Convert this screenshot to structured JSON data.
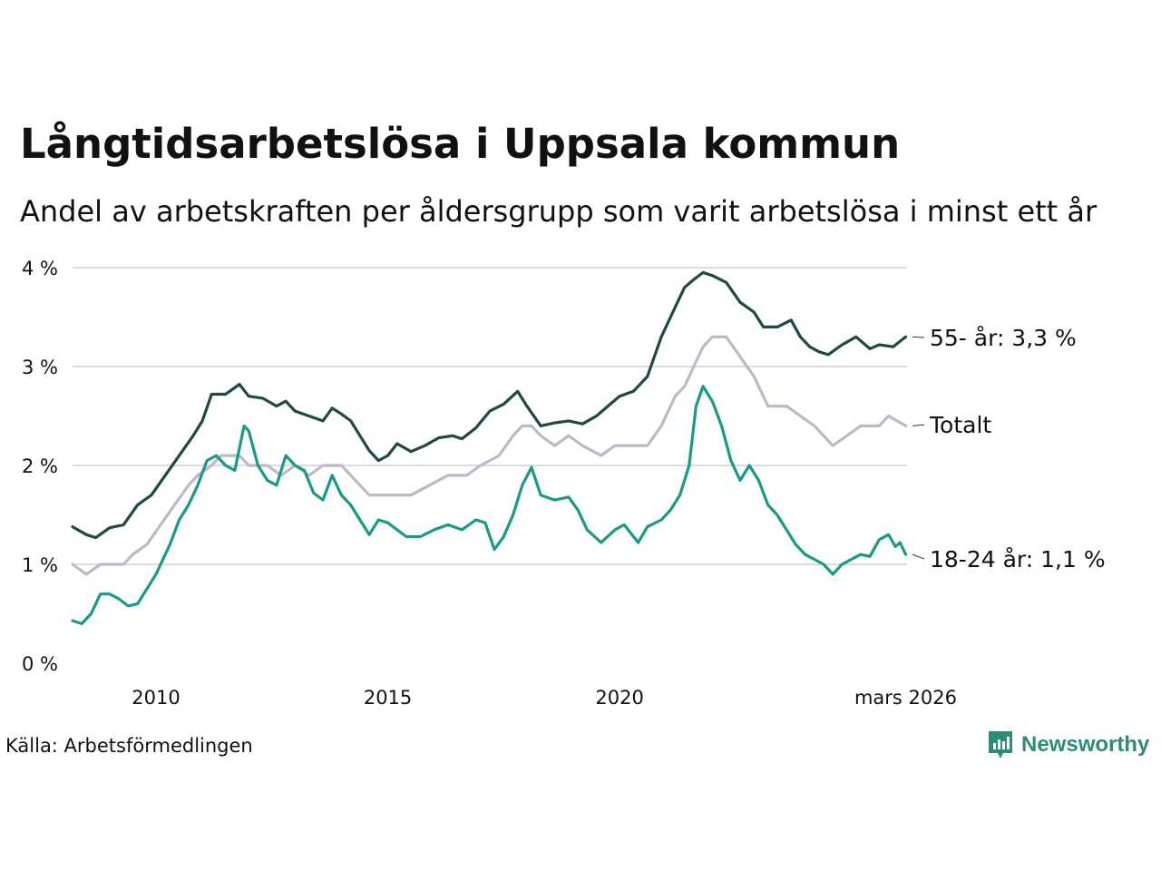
{
  "title": "Långtidsarbetslösa i Uppsala kommun",
  "subtitle": "Andel av arbetskraften per åldersgrupp som varit arbetslösa i minst ett år",
  "source": "Källa: Arbetsförmedlingen",
  "brand": "Newsworthy",
  "colors": {
    "older": "#1f4a44",
    "total": "#bdb9c8",
    "young": "#1a9a86",
    "grid": "#dcdcdc",
    "brand": "#2e8b77"
  },
  "chart_data": {
    "type": "line",
    "title": "Långtidsarbetslösa i Uppsala kommun",
    "xlabel": "",
    "ylabel": "",
    "x_range": [
      2008.2,
      2026.2
    ],
    "ylim": [
      0,
      4
    ],
    "y_ticks": [
      0,
      1,
      2,
      3,
      4
    ],
    "y_tick_labels": [
      "0 %",
      "1 %",
      "2 %",
      "3 %",
      "4 %"
    ],
    "x_ticks": [
      2010,
      2015,
      2020,
      2026.17
    ],
    "x_tick_labels": [
      "2010",
      "2015",
      "2020",
      "mars 2026"
    ],
    "series": [
      {
        "name": "55- år",
        "label": "55- år: 3,3 %",
        "color_key": "older",
        "points": [
          [
            2008.2,
            1.38
          ],
          [
            2008.5,
            1.3
          ],
          [
            2008.7,
            1.27
          ],
          [
            2009.0,
            1.37
          ],
          [
            2009.3,
            1.4
          ],
          [
            2009.6,
            1.6
          ],
          [
            2009.9,
            1.7
          ],
          [
            2010.2,
            1.9
          ],
          [
            2010.5,
            2.1
          ],
          [
            2010.8,
            2.3
          ],
          [
            2011.0,
            2.45
          ],
          [
            2011.2,
            2.72
          ],
          [
            2011.5,
            2.72
          ],
          [
            2011.8,
            2.82
          ],
          [
            2012.0,
            2.7
          ],
          [
            2012.3,
            2.68
          ],
          [
            2012.6,
            2.6
          ],
          [
            2012.8,
            2.65
          ],
          [
            2013.0,
            2.55
          ],
          [
            2013.3,
            2.5
          ],
          [
            2013.6,
            2.45
          ],
          [
            2013.8,
            2.58
          ],
          [
            2014.0,
            2.52
          ],
          [
            2014.2,
            2.45
          ],
          [
            2014.4,
            2.3
          ],
          [
            2014.6,
            2.15
          ],
          [
            2014.8,
            2.05
          ],
          [
            2015.0,
            2.1
          ],
          [
            2015.2,
            2.22
          ],
          [
            2015.5,
            2.14
          ],
          [
            2015.8,
            2.2
          ],
          [
            2016.1,
            2.28
          ],
          [
            2016.4,
            2.3
          ],
          [
            2016.6,
            2.27
          ],
          [
            2016.9,
            2.38
          ],
          [
            2017.2,
            2.55
          ],
          [
            2017.5,
            2.62
          ],
          [
            2017.8,
            2.75
          ],
          [
            2018.0,
            2.6
          ],
          [
            2018.3,
            2.4
          ],
          [
            2018.6,
            2.43
          ],
          [
            2018.9,
            2.45
          ],
          [
            2019.2,
            2.42
          ],
          [
            2019.5,
            2.5
          ],
          [
            2019.8,
            2.62
          ],
          [
            2020.0,
            2.7
          ],
          [
            2020.3,
            2.75
          ],
          [
            2020.6,
            2.9
          ],
          [
            2020.9,
            3.3
          ],
          [
            2021.2,
            3.6
          ],
          [
            2021.4,
            3.8
          ],
          [
            2021.6,
            3.88
          ],
          [
            2021.8,
            3.95
          ],
          [
            2022.0,
            3.92
          ],
          [
            2022.3,
            3.85
          ],
          [
            2022.6,
            3.65
          ],
          [
            2022.9,
            3.55
          ],
          [
            2023.1,
            3.4
          ],
          [
            2023.4,
            3.4
          ],
          [
            2023.7,
            3.47
          ],
          [
            2023.9,
            3.3
          ],
          [
            2024.1,
            3.2
          ],
          [
            2024.3,
            3.15
          ],
          [
            2024.5,
            3.12
          ],
          [
            2024.8,
            3.22
          ],
          [
            2025.1,
            3.3
          ],
          [
            2025.4,
            3.18
          ],
          [
            2025.6,
            3.22
          ],
          [
            2025.9,
            3.2
          ],
          [
            2026.17,
            3.3
          ]
        ]
      },
      {
        "name": "Totalt",
        "label": "Totalt",
        "color_key": "total",
        "points": [
          [
            2008.2,
            1.0
          ],
          [
            2008.5,
            0.9
          ],
          [
            2008.8,
            1.0
          ],
          [
            2009.3,
            1.0
          ],
          [
            2009.5,
            1.1
          ],
          [
            2009.8,
            1.2
          ],
          [
            2010.1,
            1.4
          ],
          [
            2010.4,
            1.6
          ],
          [
            2010.7,
            1.8
          ],
          [
            2010.9,
            1.9
          ],
          [
            2011.2,
            2.0
          ],
          [
            2011.4,
            2.1
          ],
          [
            2011.8,
            2.1
          ],
          [
            2012.0,
            2.0
          ],
          [
            2012.4,
            2.0
          ],
          [
            2012.7,
            1.9
          ],
          [
            2013.0,
            2.0
          ],
          [
            2013.3,
            1.9
          ],
          [
            2013.6,
            2.0
          ],
          [
            2014.0,
            2.0
          ],
          [
            2014.2,
            1.9
          ],
          [
            2014.4,
            1.8
          ],
          [
            2014.6,
            1.7
          ],
          [
            2015.0,
            1.7
          ],
          [
            2015.5,
            1.7
          ],
          [
            2015.9,
            1.8
          ],
          [
            2016.3,
            1.9
          ],
          [
            2016.7,
            1.9
          ],
          [
            2017.0,
            2.0
          ],
          [
            2017.4,
            2.1
          ],
          [
            2017.7,
            2.3
          ],
          [
            2017.9,
            2.4
          ],
          [
            2018.1,
            2.4
          ],
          [
            2018.3,
            2.3
          ],
          [
            2018.6,
            2.2
          ],
          [
            2018.9,
            2.3
          ],
          [
            2019.2,
            2.2
          ],
          [
            2019.6,
            2.1
          ],
          [
            2019.9,
            2.2
          ],
          [
            2020.3,
            2.2
          ],
          [
            2020.6,
            2.2
          ],
          [
            2020.9,
            2.4
          ],
          [
            2021.2,
            2.7
          ],
          [
            2021.4,
            2.8
          ],
          [
            2021.6,
            3.0
          ],
          [
            2021.8,
            3.2
          ],
          [
            2022.0,
            3.3
          ],
          [
            2022.3,
            3.3
          ],
          [
            2022.6,
            3.1
          ],
          [
            2022.9,
            2.9
          ],
          [
            2023.2,
            2.6
          ],
          [
            2023.6,
            2.6
          ],
          [
            2023.9,
            2.5
          ],
          [
            2024.2,
            2.4
          ],
          [
            2024.6,
            2.2
          ],
          [
            2024.9,
            2.3
          ],
          [
            2025.2,
            2.4
          ],
          [
            2025.6,
            2.4
          ],
          [
            2025.8,
            2.5
          ],
          [
            2026.17,
            2.4
          ]
        ]
      },
      {
        "name": "18-24 år",
        "label": "18-24 år: 1,1 %",
        "color_key": "young",
        "points": [
          [
            2008.2,
            0.43
          ],
          [
            2008.4,
            0.4
          ],
          [
            2008.6,
            0.5
          ],
          [
            2008.8,
            0.7
          ],
          [
            2009.0,
            0.7
          ],
          [
            2009.2,
            0.65
          ],
          [
            2009.4,
            0.58
          ],
          [
            2009.6,
            0.6
          ],
          [
            2009.8,
            0.75
          ],
          [
            2010.0,
            0.9
          ],
          [
            2010.3,
            1.2
          ],
          [
            2010.5,
            1.45
          ],
          [
            2010.7,
            1.6
          ],
          [
            2010.9,
            1.8
          ],
          [
            2011.1,
            2.05
          ],
          [
            2011.3,
            2.1
          ],
          [
            2011.5,
            2.0
          ],
          [
            2011.7,
            1.95
          ],
          [
            2011.9,
            2.4
          ],
          [
            2012.0,
            2.35
          ],
          [
            2012.2,
            2.0
          ],
          [
            2012.4,
            1.85
          ],
          [
            2012.6,
            1.8
          ],
          [
            2012.8,
            2.1
          ],
          [
            2013.0,
            2.0
          ],
          [
            2013.2,
            1.95
          ],
          [
            2013.4,
            1.72
          ],
          [
            2013.6,
            1.65
          ],
          [
            2013.8,
            1.9
          ],
          [
            2014.0,
            1.7
          ],
          [
            2014.2,
            1.6
          ],
          [
            2014.4,
            1.45
          ],
          [
            2014.6,
            1.3
          ],
          [
            2014.8,
            1.45
          ],
          [
            2015.0,
            1.42
          ],
          [
            2015.2,
            1.35
          ],
          [
            2015.4,
            1.28
          ],
          [
            2015.7,
            1.28
          ],
          [
            2016.0,
            1.35
          ],
          [
            2016.3,
            1.4
          ],
          [
            2016.6,
            1.35
          ],
          [
            2016.9,
            1.45
          ],
          [
            2017.1,
            1.42
          ],
          [
            2017.3,
            1.15
          ],
          [
            2017.5,
            1.28
          ],
          [
            2017.7,
            1.5
          ],
          [
            2017.9,
            1.8
          ],
          [
            2018.1,
            1.98
          ],
          [
            2018.3,
            1.7
          ],
          [
            2018.6,
            1.65
          ],
          [
            2018.9,
            1.68
          ],
          [
            2019.1,
            1.55
          ],
          [
            2019.3,
            1.35
          ],
          [
            2019.6,
            1.22
          ],
          [
            2019.9,
            1.35
          ],
          [
            2020.1,
            1.4
          ],
          [
            2020.4,
            1.22
          ],
          [
            2020.6,
            1.38
          ],
          [
            2020.9,
            1.45
          ],
          [
            2021.1,
            1.55
          ],
          [
            2021.3,
            1.7
          ],
          [
            2021.5,
            2.0
          ],
          [
            2021.65,
            2.6
          ],
          [
            2021.8,
            2.8
          ],
          [
            2022.0,
            2.65
          ],
          [
            2022.2,
            2.4
          ],
          [
            2022.4,
            2.05
          ],
          [
            2022.6,
            1.85
          ],
          [
            2022.8,
            2.0
          ],
          [
            2023.0,
            1.85
          ],
          [
            2023.2,
            1.6
          ],
          [
            2023.4,
            1.5
          ],
          [
            2023.6,
            1.35
          ],
          [
            2023.8,
            1.2
          ],
          [
            2024.0,
            1.1
          ],
          [
            2024.2,
            1.05
          ],
          [
            2024.4,
            1.0
          ],
          [
            2024.6,
            0.9
          ],
          [
            2024.8,
            1.0
          ],
          [
            2025.0,
            1.05
          ],
          [
            2025.2,
            1.1
          ],
          [
            2025.4,
            1.08
          ],
          [
            2025.6,
            1.25
          ],
          [
            2025.8,
            1.3
          ],
          [
            2025.95,
            1.18
          ],
          [
            2026.05,
            1.22
          ],
          [
            2026.17,
            1.1
          ]
        ]
      }
    ]
  }
}
